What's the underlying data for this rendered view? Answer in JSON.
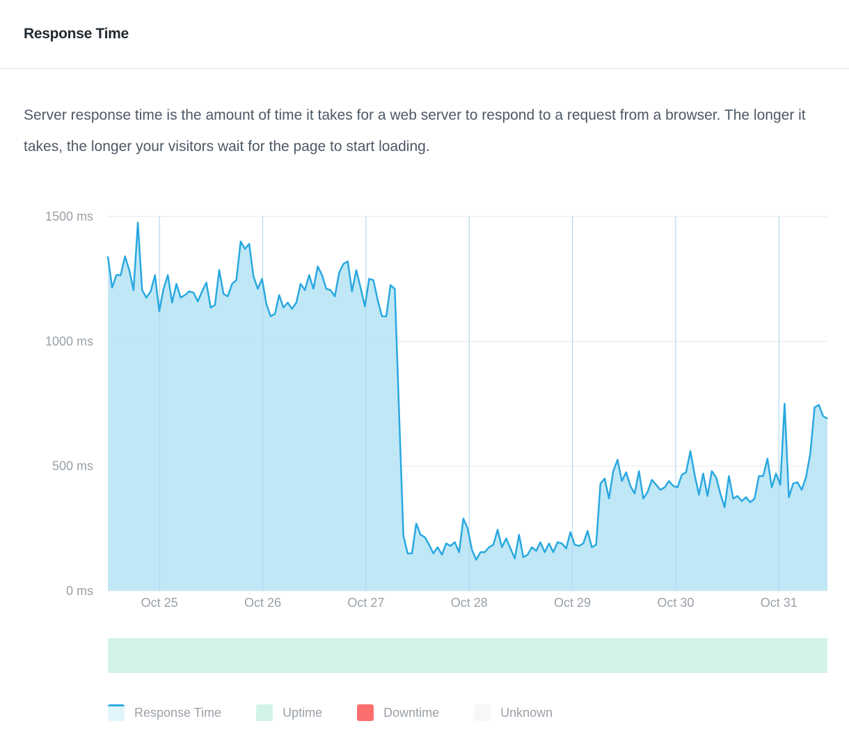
{
  "header": {
    "title": "Response Time"
  },
  "description": "Server response time is the amount of time it takes for a web server to respond to a request from a browser. The longer it takes, the longer your visitors wait for the page to start loading.",
  "colors": {
    "line": "#29a8e0",
    "area": "#bde6f6",
    "grid": "#e6e8eb",
    "uptime": "#d3f2ea",
    "downtime": "#fb6f6f",
    "unknown": "#f6f7f8"
  },
  "legend": [
    {
      "label": "Response Time",
      "color": "#29a8e0",
      "kind": "response"
    },
    {
      "label": "Uptime",
      "color": "#d3f2ea",
      "kind": "fill"
    },
    {
      "label": "Downtime",
      "color": "#fb6f6f",
      "kind": "fill"
    },
    {
      "label": "Unknown",
      "color": "#f6f7f8",
      "kind": "fill"
    }
  ],
  "chart_data": {
    "type": "area",
    "title": "Response Time",
    "xlabel": "",
    "ylabel": "",
    "ylim": [
      0,
      1500
    ],
    "y_ticks": [
      0,
      500,
      1000,
      1500
    ],
    "y_tick_labels": [
      "0 ms",
      "500 ms",
      "1000 ms",
      "1500 ms"
    ],
    "x_range": [
      -0.5,
      6.47
    ],
    "x_ticks": [
      0,
      1,
      2,
      3,
      4,
      5,
      6
    ],
    "x_tick_labels": [
      "Oct 25",
      "Oct 26",
      "Oct 27",
      "Oct 28",
      "Oct 29",
      "Oct 30",
      "Oct 31"
    ],
    "grid": true,
    "legend_position": "bottom-left",
    "series": [
      {
        "name": "Response Time",
        "values": [
          1340,
          1215,
          1265,
          1265,
          1340,
          1285,
          1205,
          1475,
          1205,
          1175,
          1200,
          1265,
          1120,
          1210,
          1265,
          1155,
          1230,
          1175,
          1185,
          1200,
          1195,
          1160,
          1200,
          1235,
          1135,
          1145,
          1285,
          1190,
          1180,
          1230,
          1245,
          1400,
          1370,
          1390,
          1260,
          1210,
          1250,
          1150,
          1100,
          1110,
          1185,
          1135,
          1155,
          1130,
          1155,
          1230,
          1205,
          1265,
          1210,
          1300,
          1265,
          1210,
          1205,
          1180,
          1275,
          1310,
          1320,
          1200,
          1285,
          1215,
          1140,
          1250,
          1245,
          1165,
          1100,
          1100,
          1225,
          1210,
          710,
          220,
          150,
          150,
          270,
          225,
          215,
          185,
          150,
          175,
          145,
          190,
          180,
          195,
          155,
          290,
          250,
          165,
          125,
          155,
          155,
          175,
          185,
          245,
          175,
          210,
          170,
          130,
          225,
          135,
          145,
          175,
          160,
          195,
          155,
          190,
          155,
          195,
          190,
          170,
          235,
          185,
          180,
          190,
          240,
          175,
          185,
          430,
          450,
          370,
          480,
          525,
          440,
          475,
          420,
          390,
          480,
          370,
          395,
          445,
          425,
          405,
          415,
          440,
          420,
          415,
          465,
          475,
          560,
          465,
          385,
          470,
          380,
          480,
          455,
          390,
          335,
          460,
          370,
          380,
          360,
          375,
          355,
          370,
          460,
          460,
          530,
          415,
          470,
          425,
          750,
          375,
          430,
          435,
          405,
          455,
          550,
          735,
          745,
          700,
          690
        ]
      }
    ]
  }
}
